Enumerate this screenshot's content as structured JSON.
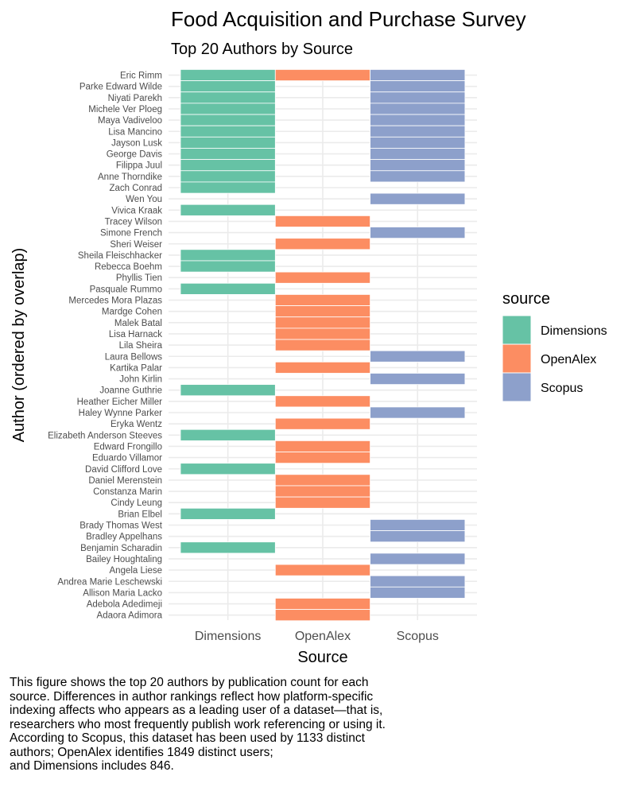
{
  "chart_data": {
    "type": "tile",
    "title": "Food Acquisition and Purchase Survey",
    "subtitle": "Top 20 Authors by Source",
    "xlabel": "Source",
    "ylabel": "Author (ordered by overlap)",
    "sources": [
      "Dimensions",
      "OpenAlex",
      "Scopus"
    ],
    "legend": {
      "title": "source",
      "placement": "right",
      "entries": [
        {
          "name": "Dimensions",
          "color": "#66c2a5"
        },
        {
          "name": "OpenAlex",
          "color": "#fc8d62"
        },
        {
          "name": "Scopus",
          "color": "#8da0cb"
        }
      ]
    },
    "authors": [
      {
        "name": "Eric Rimm",
        "sources": [
          "Dimensions",
          "OpenAlex",
          "Scopus"
        ]
      },
      {
        "name": "Parke Edward Wilde",
        "sources": [
          "Dimensions",
          "Scopus"
        ]
      },
      {
        "name": "Niyati Parekh",
        "sources": [
          "Dimensions",
          "Scopus"
        ]
      },
      {
        "name": "Michele Ver Ploeg",
        "sources": [
          "Dimensions",
          "Scopus"
        ]
      },
      {
        "name": "Maya Vadiveloo",
        "sources": [
          "Dimensions",
          "Scopus"
        ]
      },
      {
        "name": "Lisa Mancino",
        "sources": [
          "Dimensions",
          "Scopus"
        ]
      },
      {
        "name": "Jayson Lusk",
        "sources": [
          "Dimensions",
          "Scopus"
        ]
      },
      {
        "name": "George Davis",
        "sources": [
          "Dimensions",
          "Scopus"
        ]
      },
      {
        "name": "Filippa Juul",
        "sources": [
          "Dimensions",
          "Scopus"
        ]
      },
      {
        "name": "Anne Thorndike",
        "sources": [
          "Dimensions",
          "Scopus"
        ]
      },
      {
        "name": "Zach Conrad",
        "sources": [
          "Dimensions"
        ]
      },
      {
        "name": "Wen You",
        "sources": [
          "Scopus"
        ]
      },
      {
        "name": "Vivica Kraak",
        "sources": [
          "Dimensions"
        ]
      },
      {
        "name": "Tracey Wilson",
        "sources": [
          "OpenAlex"
        ]
      },
      {
        "name": "Simone French",
        "sources": [
          "Scopus"
        ]
      },
      {
        "name": "Sheri Weiser",
        "sources": [
          "OpenAlex"
        ]
      },
      {
        "name": "Sheila Fleischhacker",
        "sources": [
          "Dimensions"
        ]
      },
      {
        "name": "Rebecca Boehm",
        "sources": [
          "Dimensions"
        ]
      },
      {
        "name": "Phyllis Tien",
        "sources": [
          "OpenAlex"
        ]
      },
      {
        "name": "Pasquale Rummo",
        "sources": [
          "Dimensions"
        ]
      },
      {
        "name": "Mercedes Mora Plazas",
        "sources": [
          "OpenAlex"
        ]
      },
      {
        "name": "Mardge Cohen",
        "sources": [
          "OpenAlex"
        ]
      },
      {
        "name": "Malek Batal",
        "sources": [
          "OpenAlex"
        ]
      },
      {
        "name": "Lisa Harnack",
        "sources": [
          "OpenAlex"
        ]
      },
      {
        "name": "Lila Sheira",
        "sources": [
          "OpenAlex"
        ]
      },
      {
        "name": "Laura Bellows",
        "sources": [
          "Scopus"
        ]
      },
      {
        "name": "Kartika Palar",
        "sources": [
          "OpenAlex"
        ]
      },
      {
        "name": "John Kirlin",
        "sources": [
          "Scopus"
        ]
      },
      {
        "name": "Joanne Guthrie",
        "sources": [
          "Dimensions"
        ]
      },
      {
        "name": "Heather Eicher Miller",
        "sources": [
          "OpenAlex"
        ]
      },
      {
        "name": "Haley Wynne Parker",
        "sources": [
          "Scopus"
        ]
      },
      {
        "name": "Eryka Wentz",
        "sources": [
          "OpenAlex"
        ]
      },
      {
        "name": "Elizabeth Anderson Steeves",
        "sources": [
          "Dimensions"
        ]
      },
      {
        "name": "Edward Frongillo",
        "sources": [
          "OpenAlex"
        ]
      },
      {
        "name": "Eduardo Villamor",
        "sources": [
          "OpenAlex"
        ]
      },
      {
        "name": "David Clifford Love",
        "sources": [
          "Dimensions"
        ]
      },
      {
        "name": "Daniel Merenstein",
        "sources": [
          "OpenAlex"
        ]
      },
      {
        "name": "Constanza Marin",
        "sources": [
          "OpenAlex"
        ]
      },
      {
        "name": "Cindy Leung",
        "sources": [
          "OpenAlex"
        ]
      },
      {
        "name": "Brian Elbel",
        "sources": [
          "Dimensions"
        ]
      },
      {
        "name": "Brady Thomas West",
        "sources": [
          "Scopus"
        ]
      },
      {
        "name": "Bradley Appelhans",
        "sources": [
          "Scopus"
        ]
      },
      {
        "name": "Benjamin Scharadin",
        "sources": [
          "Dimensions"
        ]
      },
      {
        "name": "Bailey Houghtaling",
        "sources": [
          "Scopus"
        ]
      },
      {
        "name": "Angela Liese",
        "sources": [
          "OpenAlex"
        ]
      },
      {
        "name": "Andrea Marie Leschewski",
        "sources": [
          "Scopus"
        ]
      },
      {
        "name": "Allison Maria Lacko",
        "sources": [
          "Scopus"
        ]
      },
      {
        "name": "Adebola Adedimeji",
        "sources": [
          "OpenAlex"
        ]
      },
      {
        "name": "Adaora Adimora",
        "sources": [
          "OpenAlex"
        ]
      }
    ]
  },
  "caption": {
    "lines": [
      "This figure shows the top 20 authors by publication count for each",
      "source. Differences in author rankings reflect how platform-specific",
      "indexing affects who appears as a leading user of a dataset—that is,",
      "researchers who most frequently publish work referencing or using it.",
      "According to Scopus, this dataset has been used by 1133 distinct",
      "authors; OpenAlex identifies 1849 distinct users;",
      "and Dimensions includes 846."
    ]
  }
}
